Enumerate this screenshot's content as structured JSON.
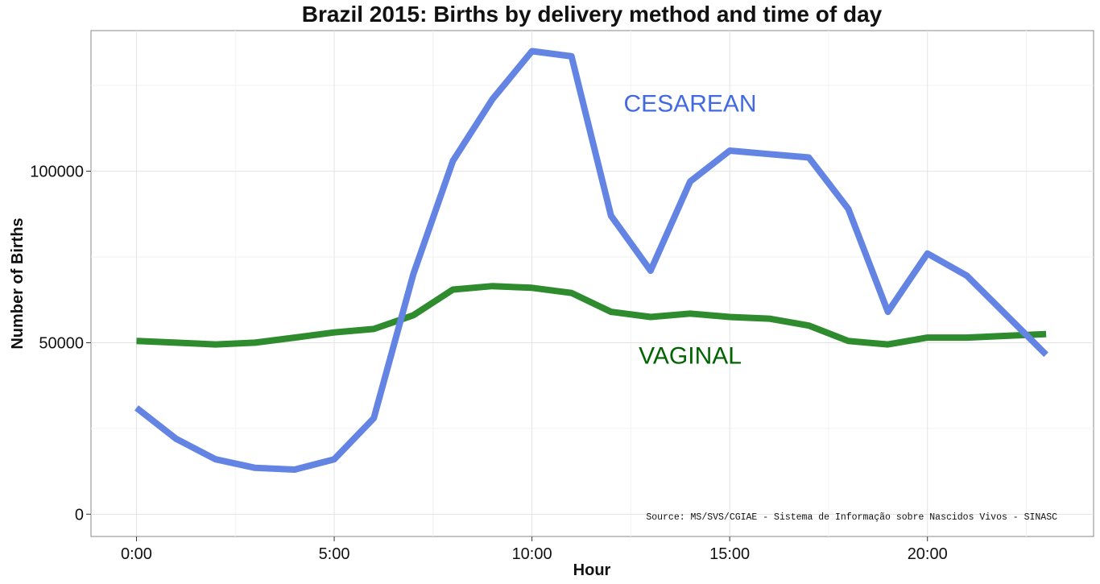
{
  "chart_data": {
    "type": "line",
    "title": "Brazil 2015: Births by delivery method and time of day",
    "xlabel": "Hour",
    "ylabel": "Number of Births",
    "x": [
      0,
      1,
      2,
      3,
      4,
      5,
      6,
      7,
      8,
      9,
      10,
      11,
      12,
      13,
      14,
      15,
      16,
      17,
      18,
      19,
      20,
      21,
      22,
      23
    ],
    "xticks": [
      0,
      5,
      10,
      15,
      20
    ],
    "xtick_labels": [
      "0:00",
      "5:00",
      "10:00",
      "15:00",
      "20:00"
    ],
    "xlim": [
      -1.15,
      24.2
    ],
    "yticks": [
      0,
      50000,
      100000
    ],
    "ytick_labels": [
      "0",
      "50000",
      "100000"
    ],
    "ylim": [
      -6500,
      141000
    ],
    "grid": true,
    "series": [
      {
        "name": "CESAREAN",
        "color": "#6384e3",
        "values": [
          31000,
          22000,
          16000,
          13500,
          13000,
          16000,
          28000,
          70000,
          103000,
          121000,
          135000,
          133500,
          87000,
          71000,
          97000,
          106000,
          105000,
          104000,
          89000,
          59000,
          76000,
          69500,
          58000,
          46500
        ]
      },
      {
        "name": "VAGINAL",
        "color": "#2e8b2e",
        "values": [
          50500,
          50000,
          49500,
          50000,
          51500,
          53000,
          54000,
          58000,
          65500,
          66500,
          66000,
          64500,
          59000,
          57500,
          58500,
          57500,
          57000,
          55000,
          50500,
          49500,
          51500,
          51500,
          52000,
          52500
        ]
      }
    ],
    "annotations": [
      {
        "text": "CESAREAN",
        "x": 14.0,
        "y": 120000,
        "color": "#4169e1"
      },
      {
        "text": "VAGINAL",
        "x": 14.0,
        "y": 46500,
        "color": "#006400"
      }
    ],
    "source_note": "Source: MS/SVS/CGIAE - Sistema de Informação sobre Nascidos Vivos - SINASC"
  }
}
